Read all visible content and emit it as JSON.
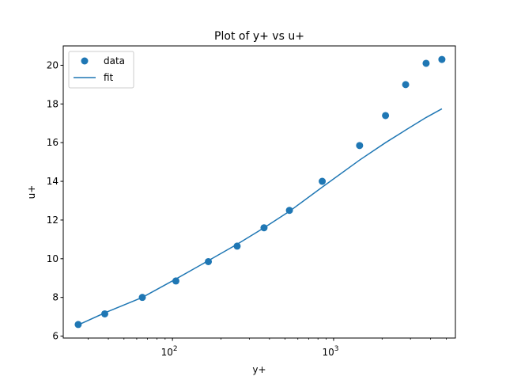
{
  "chart_data": {
    "type": "scatter",
    "title": "Plot of y+ vs u+",
    "xlabel": "y+",
    "ylabel": "u+",
    "xscale": "log",
    "xlim": [
      21,
      5700
    ],
    "ylim": [
      5.9,
      21.0
    ],
    "yticks": [
      6,
      8,
      10,
      12,
      14,
      16,
      18,
      20
    ],
    "xticks": [
      {
        "base": "10",
        "exp": "2",
        "value": 100
      },
      {
        "base": "10",
        "exp": "3",
        "value": 1000
      }
    ],
    "grid": false,
    "legend_position": "upper-left",
    "color": "#1f77b4",
    "series": [
      {
        "name": "data",
        "kind": "scatter",
        "x": [
          26,
          38,
          65,
          105,
          167,
          252,
          370,
          532,
          850,
          1450,
          2100,
          2800,
          3750,
          4700
        ],
        "y": [
          6.6,
          7.15,
          8.0,
          8.85,
          9.85,
          10.65,
          11.6,
          12.5,
          14.0,
          15.85,
          17.4,
          19.0,
          20.1,
          20.3
        ]
      },
      {
        "name": "fit",
        "kind": "line",
        "x": [
          26,
          38,
          65,
          105,
          167,
          252,
          370,
          532,
          850,
          1450,
          2100,
          2800,
          3750,
          4700
        ],
        "y": [
          6.58,
          7.2,
          8.0,
          8.95,
          9.9,
          10.75,
          11.6,
          12.45,
          13.7,
          15.1,
          16.0,
          16.65,
          17.3,
          17.75
        ]
      }
    ]
  }
}
